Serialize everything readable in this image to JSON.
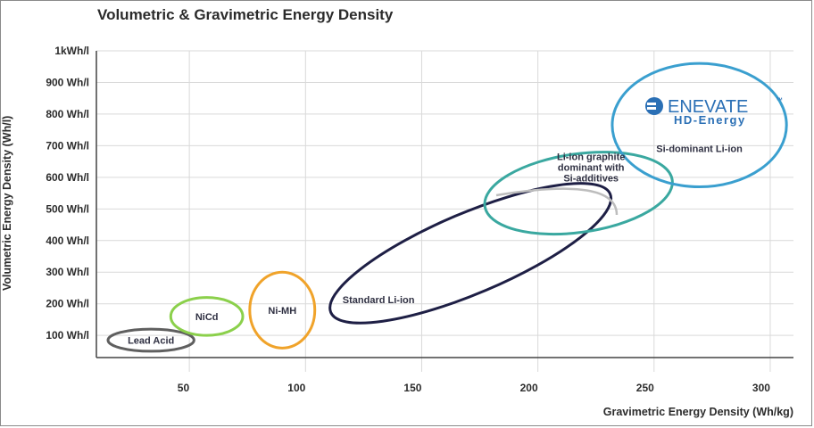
{
  "chart_data": {
    "type": "scatter",
    "title": "Volumetric & Gravimetric Energy Density",
    "xlabel": "Gravimetric Energy Density (Wh/kg)",
    "ylabel": "Volumetric Energy Density (Wh/l)",
    "xlim": [
      10,
      310
    ],
    "ylim": [
      30,
      1000
    ],
    "grid": true,
    "x_ticks": [
      {
        "value": 50,
        "label": "50"
      },
      {
        "value": 100,
        "label": "100"
      },
      {
        "value": 150,
        "label": "150"
      },
      {
        "value": 200,
        "label": "200"
      },
      {
        "value": 250,
        "label": "250"
      },
      {
        "value": 300,
        "label": "300"
      }
    ],
    "y_ticks": [
      {
        "value": 100,
        "label": "100 Wh/l"
      },
      {
        "value": 200,
        "label": "200 Wh/l"
      },
      {
        "value": 300,
        "label": "300 Wh/l"
      },
      {
        "value": 400,
        "label": "400 Wh/l"
      },
      {
        "value": 500,
        "label": "500 Wh/l"
      },
      {
        "value": 600,
        "label": "600 Wh/l"
      },
      {
        "value": 700,
        "label": "700 Wh/l"
      },
      {
        "value": 800,
        "label": "800 Wh/l"
      },
      {
        "value": 900,
        "label": "900 Wh/l"
      },
      {
        "value": 1000,
        "label": "1kWh/l"
      }
    ],
    "regions": [
      {
        "name": "Lead Acid",
        "x_range": [
          15,
          52
        ],
        "y_range": [
          50,
          120
        ],
        "color": "#5f5f5f",
        "label": [
          "Lead Acid"
        ]
      },
      {
        "name": "NiCd",
        "x_range": [
          42,
          73
        ],
        "y_range": [
          100,
          220
        ],
        "color": "#8bd04b",
        "label": [
          "NiCd"
        ]
      },
      {
        "name": "Ni-MH",
        "x_range": [
          76,
          104
        ],
        "y_range": [
          60,
          300
        ],
        "color": "#f0a32a",
        "label": [
          "Ni-MH"
        ]
      },
      {
        "name": "Standard Li-ion",
        "x_range": [
          110,
          232
        ],
        "y_range": [
          170,
          550
        ],
        "color": "#1e1f45",
        "label": [
          "Standard Li-ion"
        ]
      },
      {
        "name": "Li-ion graphite dominant with Si-additives",
        "x_range": [
          180,
          255
        ],
        "y_range": [
          430,
          670
        ],
        "color": "#3aa8a0",
        "label": [
          "Li-ion graphite",
          "dominant with",
          "Si-additives"
        ]
      },
      {
        "name": "Si-dominant Li-ion",
        "x_range": [
          232,
          307
        ],
        "y_range": [
          570,
          960
        ],
        "color": "#3a9fcf",
        "label": [
          "Si-dominant Li-ion"
        ]
      }
    ],
    "logo": {
      "brand": "ENEVATE",
      "tm": "™",
      "sub": "HD-Energy",
      "color": "#2a6fb5"
    }
  }
}
